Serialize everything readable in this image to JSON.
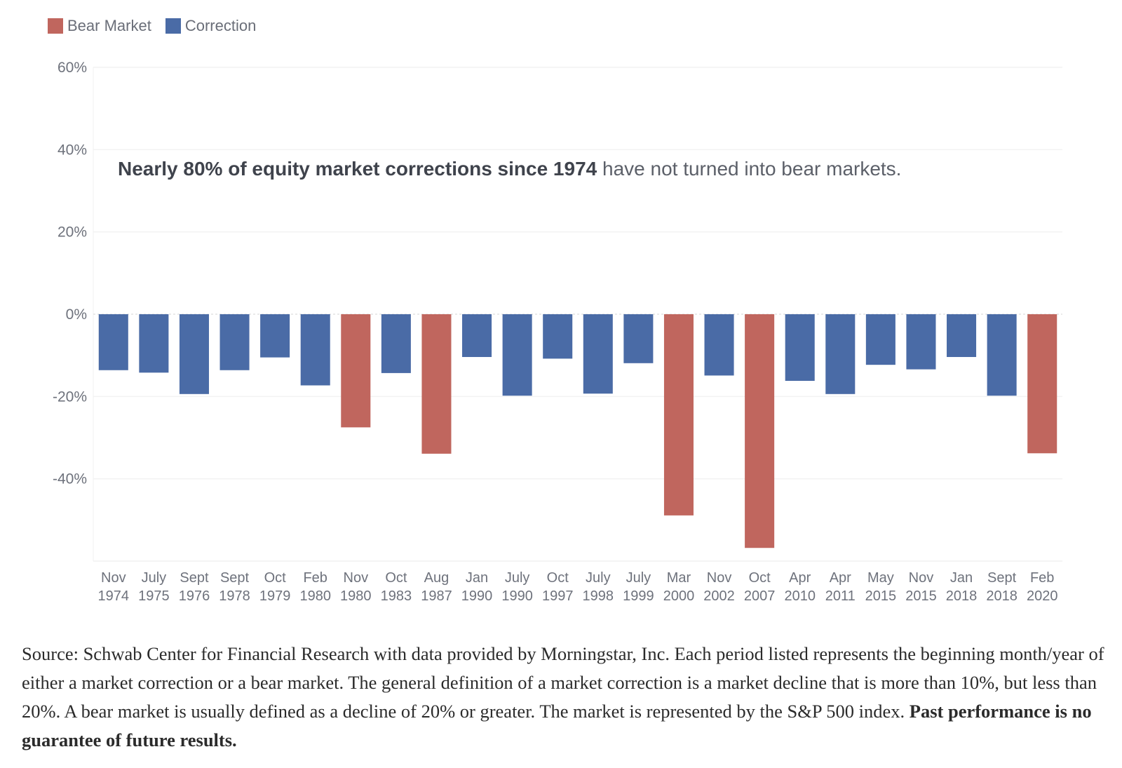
{
  "legend": [
    {
      "label": "Bear Market",
      "color": "#c0665e"
    },
    {
      "label": "Correction",
      "color": "#4a6ba6"
    }
  ],
  "annotation": {
    "bold": "Nearly 80% of equity market corrections since 1974",
    "regular": " have not turned into bear markets."
  },
  "chart_data": {
    "type": "bar",
    "title": "",
    "xlabel": "",
    "ylabel": "",
    "ylim": [
      -60,
      60
    ],
    "yticks": [
      60,
      40,
      20,
      0,
      -20,
      -40
    ],
    "ytick_labels": [
      "60%",
      "40%",
      "20%",
      "0%",
      "-20%",
      "-40%"
    ],
    "grid": true,
    "legend_position": "top-left",
    "categories": [
      [
        "Nov",
        "1974"
      ],
      [
        "July",
        "1975"
      ],
      [
        "Sept",
        "1976"
      ],
      [
        "Sept",
        "1978"
      ],
      [
        "Oct",
        "1979"
      ],
      [
        "Feb",
        "1980"
      ],
      [
        "Nov",
        "1980"
      ],
      [
        "Oct",
        "1983"
      ],
      [
        "Aug",
        "1987"
      ],
      [
        "Jan",
        "1990"
      ],
      [
        "July",
        "1990"
      ],
      [
        "Oct",
        "1997"
      ],
      [
        "July",
        "1998"
      ],
      [
        "July",
        "1999"
      ],
      [
        "Mar",
        "2000"
      ],
      [
        "Nov",
        "2002"
      ],
      [
        "Oct",
        "2007"
      ],
      [
        "Apr",
        "2010"
      ],
      [
        "Apr",
        "2011"
      ],
      [
        "May",
        "2015"
      ],
      [
        "Nov",
        "2015"
      ],
      [
        "Jan",
        "2018"
      ],
      [
        "Sept",
        "2018"
      ],
      [
        "Feb",
        "2020"
      ]
    ],
    "values": [
      -13.6,
      -14.2,
      -19.4,
      -13.6,
      -10.5,
      -17.3,
      -27.5,
      -14.3,
      -33.9,
      -10.4,
      -19.8,
      -10.8,
      -19.3,
      -11.9,
      -48.9,
      -14.9,
      -56.8,
      -16.2,
      -19.4,
      -12.3,
      -13.4,
      -10.4,
      -19.8,
      -33.8
    ],
    "types": [
      "Correction",
      "Correction",
      "Correction",
      "Correction",
      "Correction",
      "Correction",
      "Bear Market",
      "Correction",
      "Bear Market",
      "Correction",
      "Correction",
      "Correction",
      "Correction",
      "Correction",
      "Bear Market",
      "Correction",
      "Bear Market",
      "Correction",
      "Correction",
      "Correction",
      "Correction",
      "Correction",
      "Correction",
      "Bear Market"
    ],
    "colors": {
      "Bear Market": "#c0665e",
      "Correction": "#4a6ba6"
    }
  },
  "footer": {
    "text": "Source: Schwab Center for Financial Research with data provided by Morningstar, Inc. Each period listed represents the beginning month/year of either a market correction or a bear market. The general definition of a market correction is a market decline that is more than 10%, but less than 20%. A bear market is usually defined as a decline of 20% or greater. The market is represented by the S&P 500 index. ",
    "bold": "Past performance is no guarantee of future results."
  }
}
